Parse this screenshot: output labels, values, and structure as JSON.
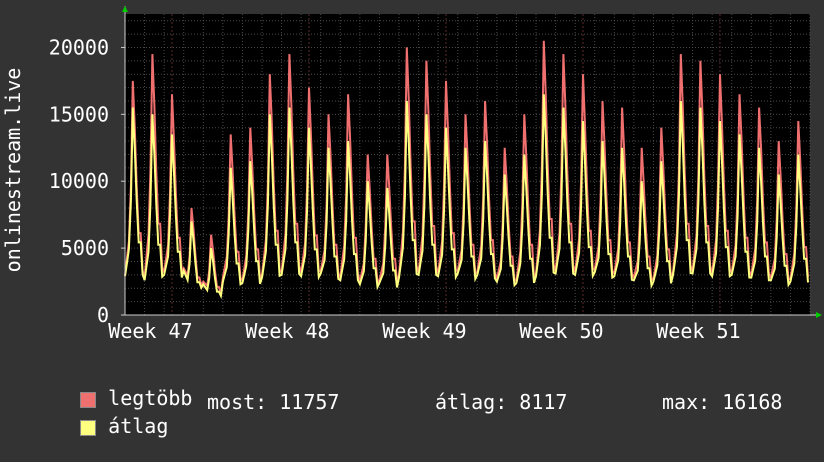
{
  "chart_data": {
    "type": "line",
    "ylabel": "onlinestream.live",
    "ylim": [
      0,
      22500
    ],
    "yticks": [
      0,
      5000,
      10000,
      15000,
      20000
    ],
    "xticks": [
      "Week 47",
      "Week 48",
      "Week 49",
      "Week 50",
      "Week 51"
    ],
    "grid": true,
    "colors": {
      "background": "#333333",
      "plot": "#000000",
      "grid": "#4a4a4a",
      "minor_grid": "#5a2a2a"
    },
    "series": [
      {
        "name": "legtöbb",
        "color": "#f07070",
        "daily_peaks": [
          17500,
          19500,
          16500,
          8000,
          6000,
          13500,
          14000,
          18000,
          19500,
          17000,
          15000,
          16500,
          12000,
          12000,
          20000,
          19000,
          17500,
          15000,
          16000,
          12500,
          15000,
          20500,
          19500,
          18000,
          16000,
          15500,
          12500,
          14000,
          19500,
          19000,
          18000,
          16500,
          15500,
          13000,
          14500
        ],
        "daily_mins": [
          3000,
          2800,
          3200,
          3500,
          2500,
          2800,
          2600,
          3000,
          3200,
          3100,
          3300,
          2800,
          2500,
          2600,
          3000,
          3200,
          3100,
          3300,
          3200,
          2700,
          2600,
          3100,
          3300,
          3200,
          3400,
          3100,
          2800,
          2700,
          3200,
          3300,
          3100,
          3200,
          3000,
          2800,
          2700
        ]
      },
      {
        "name": "átlag",
        "color": "#ffff80",
        "daily_peaks": [
          15500,
          15000,
          13500,
          7000,
          5000,
          11000,
          11500,
          15000,
          15500,
          14000,
          12500,
          13000,
          10000,
          9500,
          16000,
          15000,
          14000,
          12500,
          13000,
          10500,
          12000,
          16500,
          15500,
          14500,
          13000,
          12500,
          10000,
          11500,
          16000,
          15500,
          14500,
          13500,
          12500,
          10500,
          12000
        ],
        "daily_mins": [
          2900,
          2600,
          3000,
          3300,
          2300,
          2500,
          2400,
          2800,
          3000,
          2900,
          3100,
          2600,
          2300,
          2400,
          2800,
          3000,
          2900,
          3100,
          3000,
          2500,
          2400,
          2900,
          3100,
          3000,
          3200,
          2900,
          2600,
          2500,
          3000,
          3100,
          2900,
          3000,
          2800,
          2600,
          2500
        ]
      }
    ]
  },
  "legend": {
    "max_label": "legtöbb",
    "avg_label": "átlag",
    "stats": [
      {
        "label": "most:",
        "value": "11757"
      },
      {
        "label": "átlag:",
        "value": "8117"
      },
      {
        "label": "max:",
        "value": "16168"
      }
    ]
  }
}
